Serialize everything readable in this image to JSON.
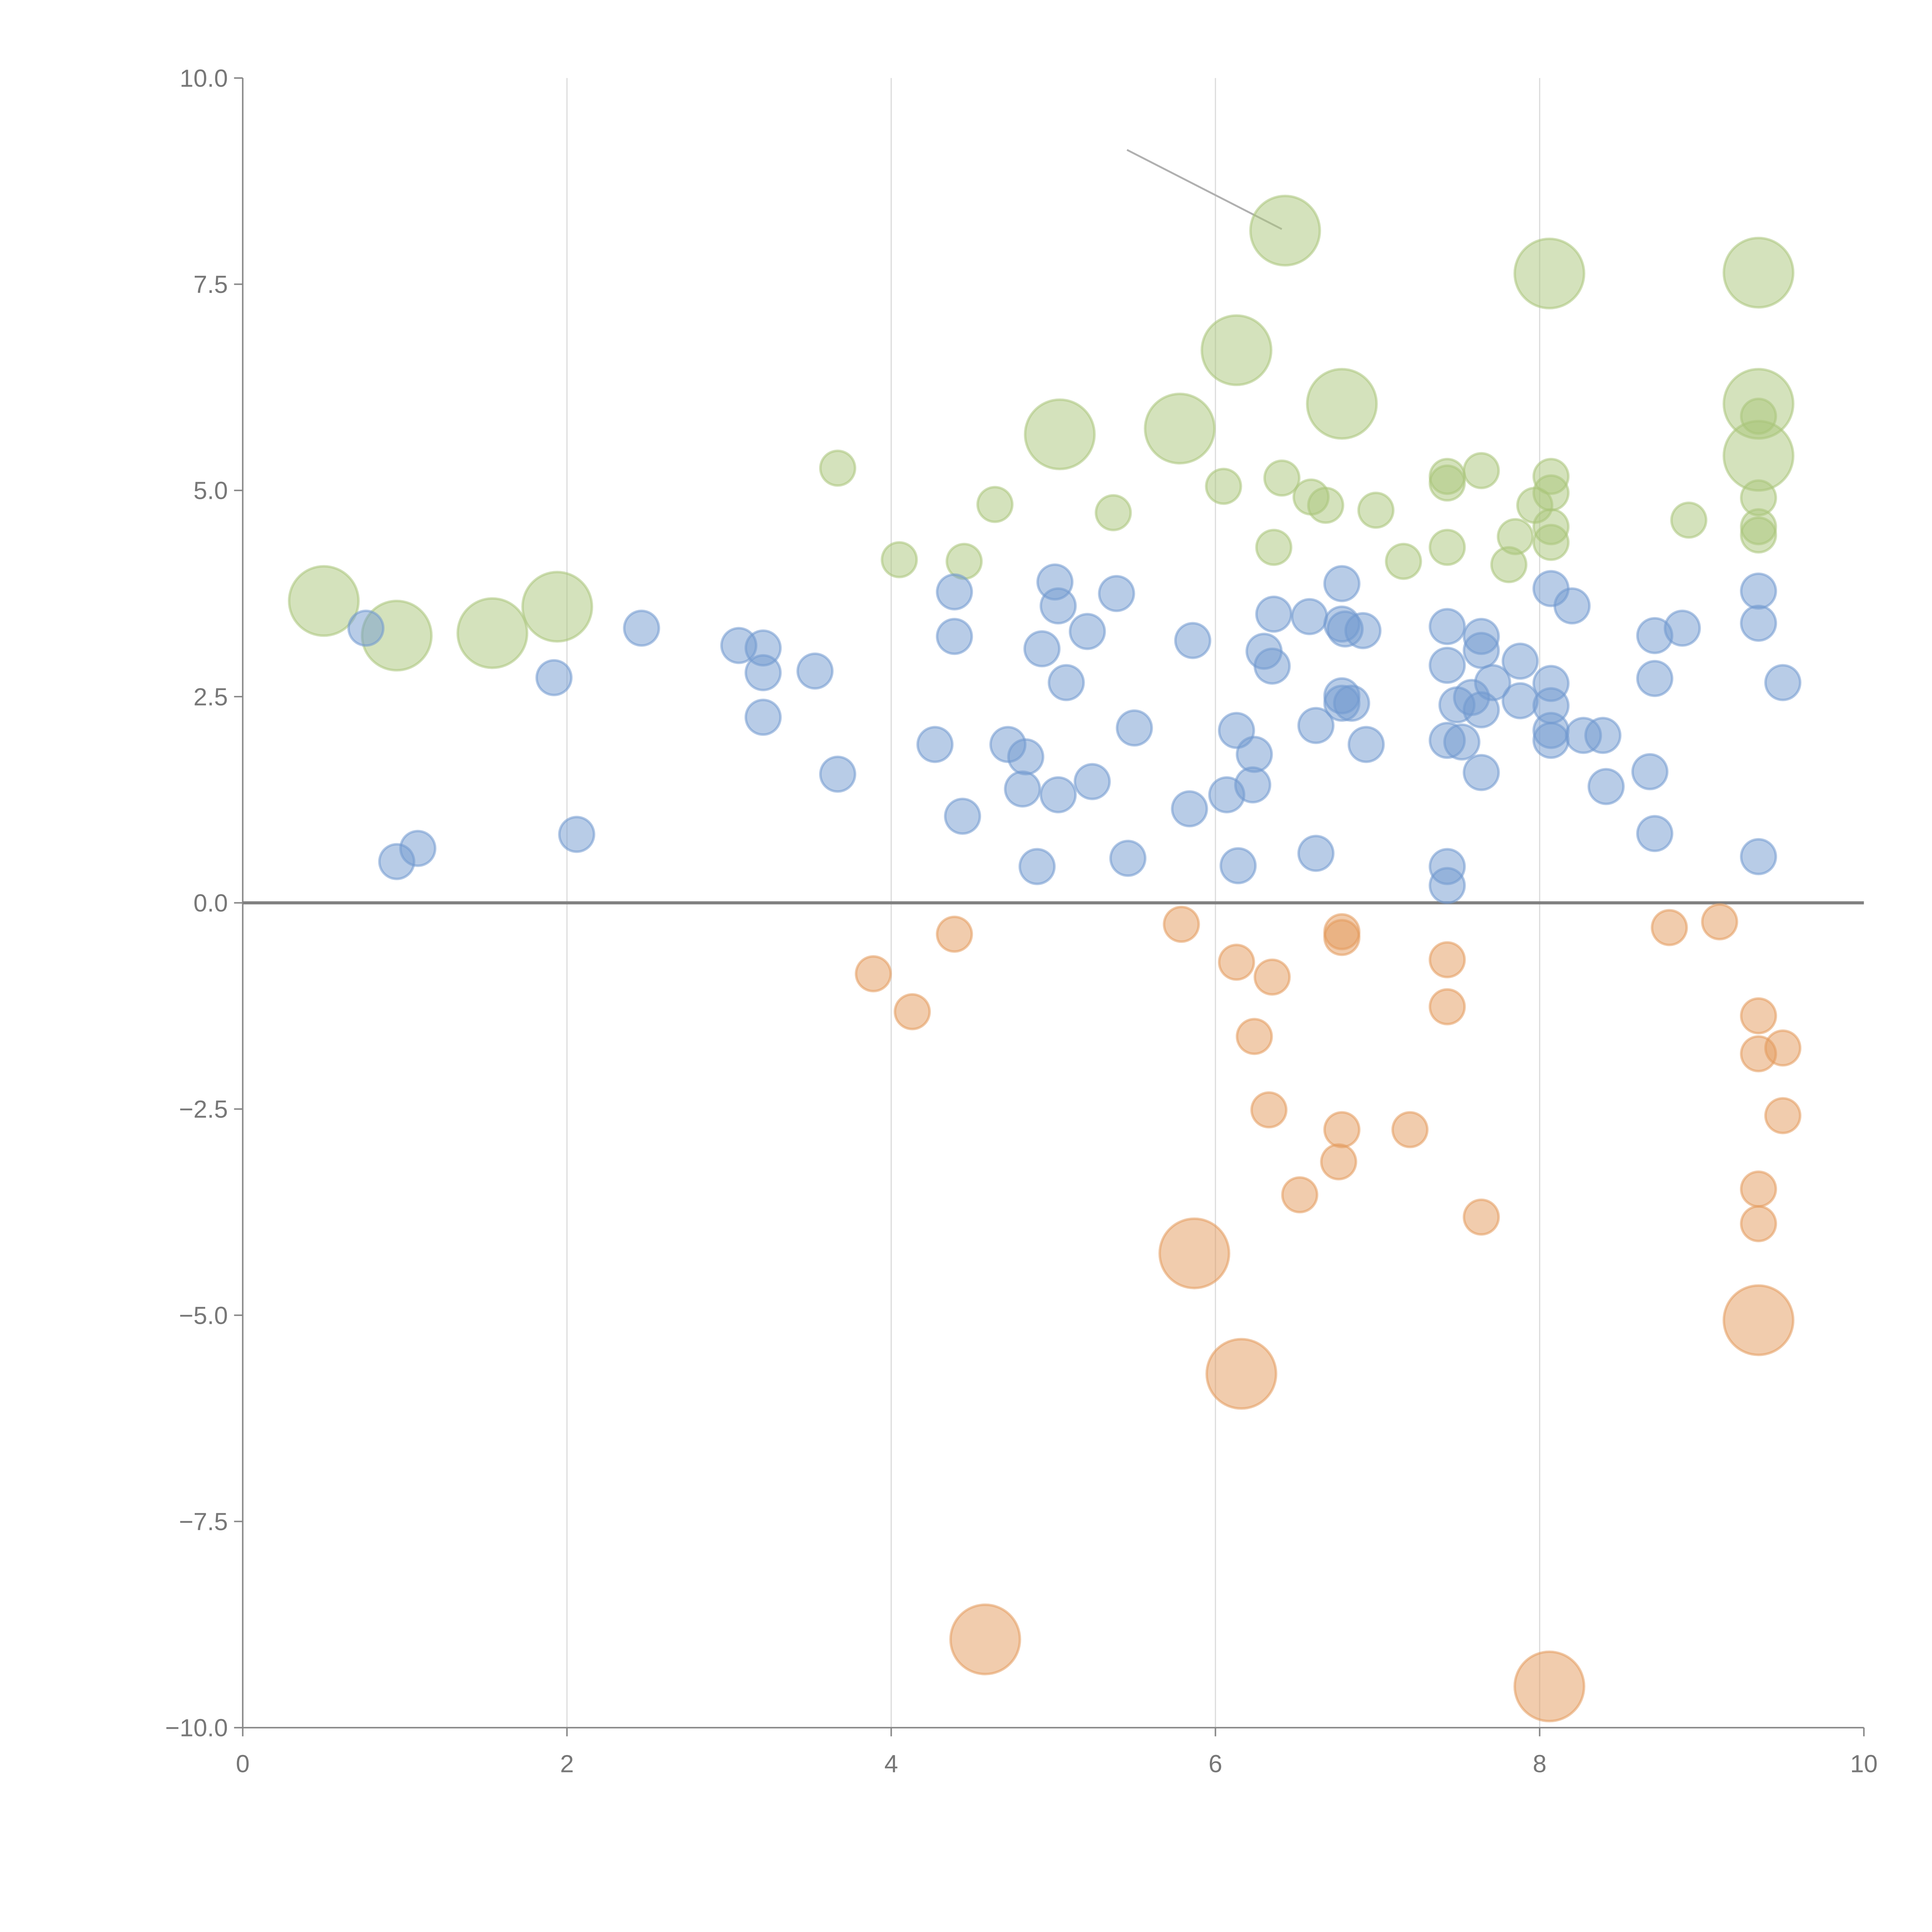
{
  "chart_data": {
    "type": "scatter",
    "title": "",
    "xlabel": "",
    "ylabel": "",
    "xlim": [
      0,
      10
    ],
    "ylim": [
      -10,
      10
    ],
    "grid": "vertical lines at x ticks",
    "x_ticks": [
      "0",
      "2",
      "4",
      "6",
      "8",
      "10"
    ],
    "x_tick_values": [
      0,
      2,
      4,
      6,
      8,
      10
    ],
    "y_ticks": [
      "10.0",
      "7.5",
      "5.0",
      "2.5",
      "0.0",
      "−2.5",
      "−5.0",
      "−7.5",
      "−10.0"
    ],
    "y_tick_values": [
      10,
      7.5,
      5,
      2.5,
      0,
      -2.5,
      -5,
      -7.5,
      -10
    ],
    "point_format": "[x, y, size]",
    "series": [
      {
        "name": "green",
        "color": "#a9c57a",
        "points": [
          [
            0.5,
            3.66,
            4
          ],
          [
            0.95,
            3.24,
            4
          ],
          [
            1.54,
            3.27,
            4
          ],
          [
            1.94,
            3.59,
            4
          ],
          [
            3.67,
            5.27,
            1
          ],
          [
            4.05,
            4.16,
            1
          ],
          [
            4.45,
            4.14,
            1
          ],
          [
            4.64,
            4.83,
            1
          ],
          [
            5.04,
            5.68,
            4
          ],
          [
            5.37,
            4.73,
            1
          ],
          [
            5.78,
            5.75,
            4
          ],
          [
            6.05,
            5.05,
            1
          ],
          [
            6.13,
            6.7,
            4
          ],
          [
            6.41,
            5.15,
            1
          ],
          [
            6.36,
            4.31,
            1
          ],
          [
            6.43,
            8.15,
            4
          ],
          [
            6.59,
            4.92,
            1
          ],
          [
            6.68,
            4.82,
            1
          ],
          [
            6.78,
            6.05,
            4
          ],
          [
            6.99,
            4.76,
            1
          ],
          [
            7.16,
            4.14,
            1
          ],
          [
            7.43,
            5.17,
            1
          ],
          [
            7.43,
            5.09,
            1
          ],
          [
            7.43,
            4.31,
            1
          ],
          [
            7.64,
            5.24,
            1
          ],
          [
            7.81,
            4.1,
            1
          ],
          [
            7.85,
            4.44,
            1
          ],
          [
            7.97,
            4.82,
            1
          ],
          [
            8.06,
            7.63,
            4
          ],
          [
            8.07,
            5.17,
            1
          ],
          [
            8.07,
            4.97,
            1
          ],
          [
            8.07,
            4.56,
            1
          ],
          [
            8.07,
            4.37,
            1
          ],
          [
            8.92,
            4.64,
            1
          ],
          [
            9.35,
            7.64,
            4
          ],
          [
            9.35,
            6.05,
            4
          ],
          [
            9.35,
            5.9,
            1
          ],
          [
            9.35,
            5.42,
            4
          ],
          [
            9.35,
            4.91,
            1
          ],
          [
            9.35,
            4.56,
            1
          ],
          [
            9.35,
            4.46,
            1
          ]
        ]
      },
      {
        "name": "blue",
        "color": "#7199cf",
        "points": [
          [
            0.76,
            3.33,
            1
          ],
          [
            0.95,
            0.5,
            1
          ],
          [
            1.08,
            0.66,
            1
          ],
          [
            1.92,
            2.73,
            1
          ],
          [
            2.06,
            0.83,
            1
          ],
          [
            2.46,
            3.33,
            1
          ],
          [
            3.06,
            3.12,
            1
          ],
          [
            3.21,
            3.09,
            1
          ],
          [
            3.21,
            2.79,
            1
          ],
          [
            3.21,
            2.25,
            1
          ],
          [
            3.53,
            2.81,
            1
          ],
          [
            3.67,
            1.56,
            1
          ],
          [
            4.27,
            1.92,
            1
          ],
          [
            4.39,
            3.77,
            1
          ],
          [
            4.39,
            3.23,
            1
          ],
          [
            4.44,
            1.05,
            1
          ],
          [
            4.72,
            1.92,
            1
          ],
          [
            4.83,
            1.77,
            1
          ],
          [
            4.81,
            1.38,
            1
          ],
          [
            4.9,
            0.44,
            1
          ],
          [
            4.93,
            3.08,
            1
          ],
          [
            5.01,
            3.89,
            1
          ],
          [
            5.03,
            3.6,
            1
          ],
          [
            5.08,
            2.67,
            1
          ],
          [
            5.03,
            1.31,
            1
          ],
          [
            5.21,
            3.29,
            1
          ],
          [
            5.24,
            1.47,
            1
          ],
          [
            5.39,
            3.75,
            1
          ],
          [
            5.5,
            2.12,
            1
          ],
          [
            5.46,
            0.54,
            1
          ],
          [
            5.84,
            1.14,
            1
          ],
          [
            5.86,
            3.18,
            1
          ],
          [
            6.07,
            1.31,
            1
          ],
          [
            6.13,
            2.09,
            1
          ],
          [
            6.14,
            0.45,
            1
          ],
          [
            6.23,
            1.43,
            1
          ],
          [
            6.24,
            1.8,
            1
          ],
          [
            6.3,
            3.05,
            1
          ],
          [
            6.35,
            2.87,
            1
          ],
          [
            6.36,
            3.5,
            1
          ],
          [
            6.58,
            3.47,
            1
          ],
          [
            6.62,
            2.15,
            1
          ],
          [
            6.62,
            0.6,
            1
          ],
          [
            6.78,
            3.87,
            1
          ],
          [
            6.78,
            3.38,
            1
          ],
          [
            6.8,
            3.32,
            1
          ],
          [
            6.78,
            2.51,
            1
          ],
          [
            6.78,
            2.42,
            1
          ],
          [
            6.84,
            2.42,
            1
          ],
          [
            6.91,
            3.3,
            1
          ],
          [
            6.93,
            1.92,
            1
          ],
          [
            7.43,
            3.35,
            1
          ],
          [
            7.43,
            2.88,
            1
          ],
          [
            7.43,
            1.97,
            1
          ],
          [
            7.43,
            0.44,
            1
          ],
          [
            7.43,
            0.21,
            1
          ],
          [
            7.49,
            2.4,
            1
          ],
          [
            7.52,
            1.95,
            1
          ],
          [
            7.58,
            2.49,
            1
          ],
          [
            7.64,
            3.23,
            1
          ],
          [
            7.64,
            3.06,
            1
          ],
          [
            7.64,
            2.34,
            1
          ],
          [
            7.64,
            1.58,
            1
          ],
          [
            7.71,
            2.67,
            1
          ],
          [
            7.88,
            2.93,
            1
          ],
          [
            7.88,
            2.45,
            1
          ],
          [
            8.07,
            3.81,
            1
          ],
          [
            8.07,
            2.66,
            1
          ],
          [
            8.07,
            2.39,
            1
          ],
          [
            8.07,
            2.09,
            1
          ],
          [
            8.07,
            1.97,
            1
          ],
          [
            8.2,
            3.6,
            1
          ],
          [
            8.27,
            2.03,
            1
          ],
          [
            8.39,
            2.03,
            1
          ],
          [
            8.41,
            1.41,
            1
          ],
          [
            8.68,
            1.59,
            1
          ],
          [
            8.71,
            0.84,
            1
          ],
          [
            8.71,
            3.24,
            1
          ],
          [
            8.71,
            2.72,
            1
          ],
          [
            8.88,
            3.33,
            1
          ],
          [
            9.35,
            3.78,
            1
          ],
          [
            9.35,
            3.39,
            1
          ],
          [
            9.35,
            0.56,
            1
          ],
          [
            9.5,
            2.67,
            1
          ]
        ]
      },
      {
        "name": "orange",
        "color": "#e39a5c",
        "points": [
          [
            3.89,
            -0.86,
            1
          ],
          [
            4.13,
            -1.32,
            1
          ],
          [
            4.39,
            -0.38,
            1
          ],
          [
            4.58,
            -8.93,
            4
          ],
          [
            5.79,
            -0.26,
            1
          ],
          [
            5.87,
            -4.25,
            4
          ],
          [
            6.13,
            -0.72,
            1
          ],
          [
            6.16,
            -5.71,
            4
          ],
          [
            6.24,
            -1.62,
            1
          ],
          [
            6.33,
            -2.51,
            1
          ],
          [
            6.35,
            -0.9,
            1
          ],
          [
            6.52,
            -3.54,
            1
          ],
          [
            6.76,
            -3.14,
            1
          ],
          [
            6.78,
            -2.75,
            1
          ],
          [
            6.78,
            -0.35,
            1
          ],
          [
            6.78,
            -0.42,
            1
          ],
          [
            7.2,
            -2.75,
            1
          ],
          [
            7.43,
            -0.69,
            1
          ],
          [
            7.43,
            -1.26,
            1
          ],
          [
            7.64,
            -3.81,
            1
          ],
          [
            8.06,
            -9.5,
            4
          ],
          [
            8.8,
            -0.3,
            1
          ],
          [
            9.11,
            -0.23,
            1
          ],
          [
            9.35,
            -1.37,
            1
          ],
          [
            9.35,
            -1.83,
            1
          ],
          [
            9.5,
            -1.76,
            1
          ],
          [
            9.5,
            -2.58,
            1
          ],
          [
            9.35,
            -3.47,
            1
          ],
          [
            9.35,
            -3.89,
            1
          ],
          [
            9.35,
            -5.06,
            4
          ]
        ]
      }
    ]
  }
}
